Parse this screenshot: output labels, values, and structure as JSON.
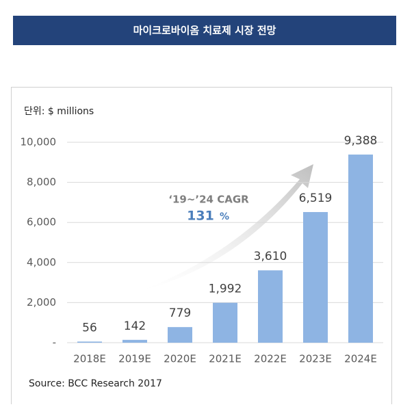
{
  "chart_data": {
    "type": "bar",
    "title": "마이크로바이옴 치료제 시장 전망",
    "unit_label": "단위: $ millions",
    "source": "Source: BCC Research 2017",
    "annotation": {
      "label": "‘19~’24 CAGR",
      "value": "131",
      "unit": "%"
    },
    "categories": [
      "2018E",
      "2019E",
      "2020E",
      "2021E",
      "2022E",
      "2023E",
      "2024E"
    ],
    "values": [
      56,
      142,
      779,
      1992,
      3610,
      6519,
      9388
    ],
    "value_labels": [
      "56",
      "142",
      "779",
      "1,992",
      "3,610",
      "6,519",
      "9,388"
    ],
    "color": "#8eb4e3",
    "ylim": [
      0,
      10000
    ],
    "yticks": [
      {
        "value": 0,
        "label": "-"
      },
      {
        "value": 2000,
        "label": "2,000"
      },
      {
        "value": 4000,
        "label": "4,000"
      },
      {
        "value": 6000,
        "label": "6,000"
      },
      {
        "value": 8000,
        "label": "8,000"
      },
      {
        "value": 10000,
        "label": "10,000"
      }
    ],
    "grid": true
  }
}
